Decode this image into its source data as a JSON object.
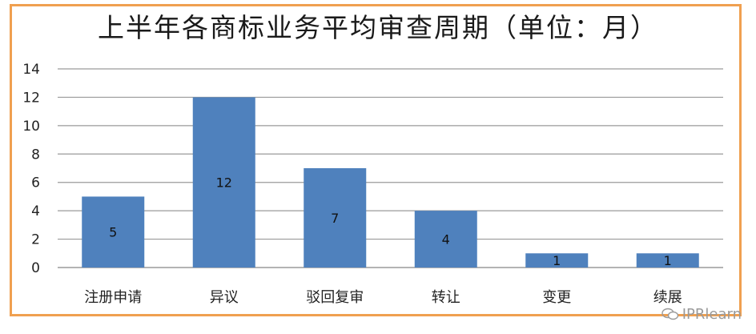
{
  "chart_data": {
    "type": "bar",
    "title": "上半年各商标业务平均审查周期（单位：月）",
    "categories": [
      "注册申请",
      "异议",
      "驳回复审",
      "转让",
      "变更",
      "续展"
    ],
    "values": [
      5,
      12,
      7,
      4,
      1,
      1
    ],
    "data_labels": [
      "5",
      "12",
      "7",
      "4",
      "1",
      "1"
    ],
    "ylim": [
      0,
      14
    ],
    "yticks": [
      0,
      2,
      4,
      6,
      8,
      10,
      12,
      14
    ],
    "grid": true,
    "bar_color": "#4f81bd",
    "frame_color": "#f0a050"
  },
  "watermark": {
    "text": "IPRlearn",
    "icon": "wechat-icon"
  }
}
